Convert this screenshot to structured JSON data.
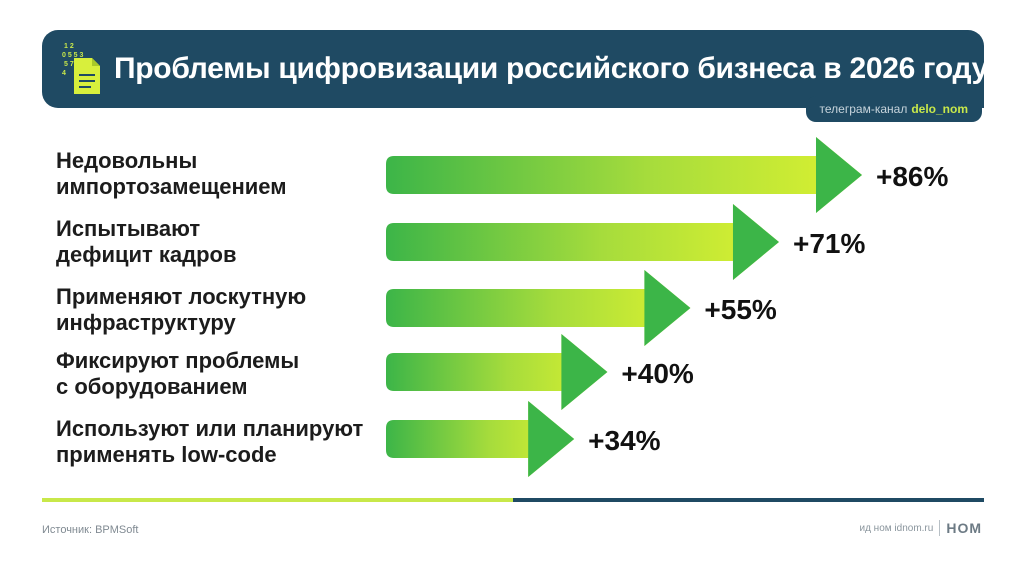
{
  "header": {
    "title": "Проблемы цифровизации российского бизнеса в 2026 году",
    "icon": "document-digits-icon",
    "icon_digits": [
      "1 2",
      "0 5 5  3",
      "5 7 8",
      "4"
    ]
  },
  "telegram": {
    "prefix": "телеграм-канал",
    "handle": "delo_nom"
  },
  "chart_data": {
    "type": "bar",
    "orientation": "horizontal",
    "categories": [
      [
        "Недовольны",
        "импортозамещением"
      ],
      [
        "Испытывают",
        "дефицит кадров"
      ],
      [
        "Применяют лоскутную",
        "инфраструктуру"
      ],
      [
        "Фиксируют проблемы",
        "с оборудованием"
      ],
      [
        "Используют или планируют",
        "применять low-code"
      ]
    ],
    "values": [
      86,
      71,
      55,
      40,
      34
    ],
    "value_labels": [
      "+86%",
      "+71%",
      "+55%",
      "+40%",
      "+34%"
    ],
    "title": "",
    "xlabel": "",
    "ylabel": "",
    "xlim": [
      0,
      100
    ],
    "grid": false,
    "legend": "none"
  },
  "footer": {
    "source": "Источник: BPMSoft",
    "site": "ид ном idnom.ru",
    "logo": "НОМ"
  },
  "colors": {
    "header_bg": "#1f4a63",
    "arrow_green": "#3cb548",
    "arrow_lime": "#dcf230",
    "accent_lime": "#c8e84a"
  }
}
